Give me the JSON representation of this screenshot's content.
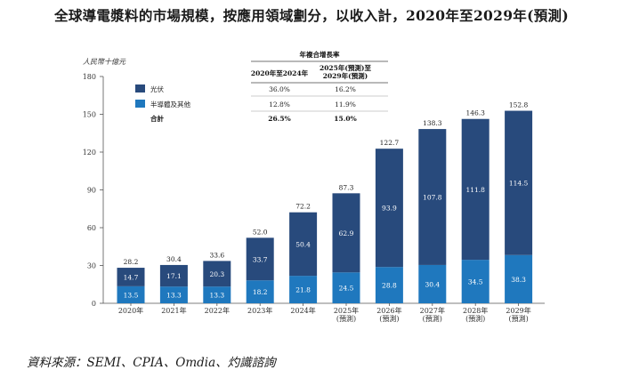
{
  "title": "全球導電漿料的市場規模，按應用領域劃分，以收入計，2020年至2029年(預測)",
  "source": "資料來源：SEMI、CPIA、Omdia、灼識諮詢",
  "colors": {
    "pv": "#284a7c",
    "semi": "#1f78be",
    "axis": "#555555"
  },
  "chart_data": {
    "type": "bar",
    "stacked": true,
    "ylabel": "人民幣十億元",
    "ylim": [
      0,
      180
    ],
    "yticks": [
      0,
      30,
      60,
      90,
      120,
      150,
      180
    ],
    "categories": [
      [
        "2020年"
      ],
      [
        "2021年"
      ],
      [
        "2022年"
      ],
      [
        "2023年"
      ],
      [
        "2024年"
      ],
      [
        "2025年",
        "(預測)"
      ],
      [
        "2026年",
        "(預測)"
      ],
      [
        "2027年",
        "(預測)"
      ],
      [
        "2028年",
        "(預測)"
      ],
      [
        "2029年",
        "(預測)"
      ]
    ],
    "series": [
      {
        "name": "半導體及其他",
        "values": [
          13.5,
          13.3,
          13.3,
          18.2,
          21.8,
          24.5,
          28.8,
          30.4,
          34.5,
          38.3
        ]
      },
      {
        "name": "光伏",
        "values": [
          14.7,
          17.1,
          20.3,
          33.7,
          50.4,
          62.9,
          93.9,
          107.8,
          111.8,
          114.5
        ]
      }
    ],
    "totals": [
      28.2,
      30.4,
      33.6,
      52.0,
      72.2,
      87.3,
      122.7,
      138.3,
      146.3,
      152.8
    ],
    "legend": [
      {
        "name": "光伏",
        "color_key": "pv"
      },
      {
        "name": "半導體及其他",
        "color_key": "semi"
      },
      {
        "name": "合計",
        "color_key": null
      }
    ],
    "cagr_table": {
      "header": "年複合增長率",
      "columns": [
        [
          "2020年至2024年"
        ],
        [
          "2025年(預測)至",
          "2029年(預測)"
        ]
      ],
      "rows": [
        [
          "36.0%",
          "16.2%"
        ],
        [
          "12.8%",
          "11.9%"
        ],
        [
          "26.5%",
          "15.0%"
        ]
      ]
    }
  }
}
